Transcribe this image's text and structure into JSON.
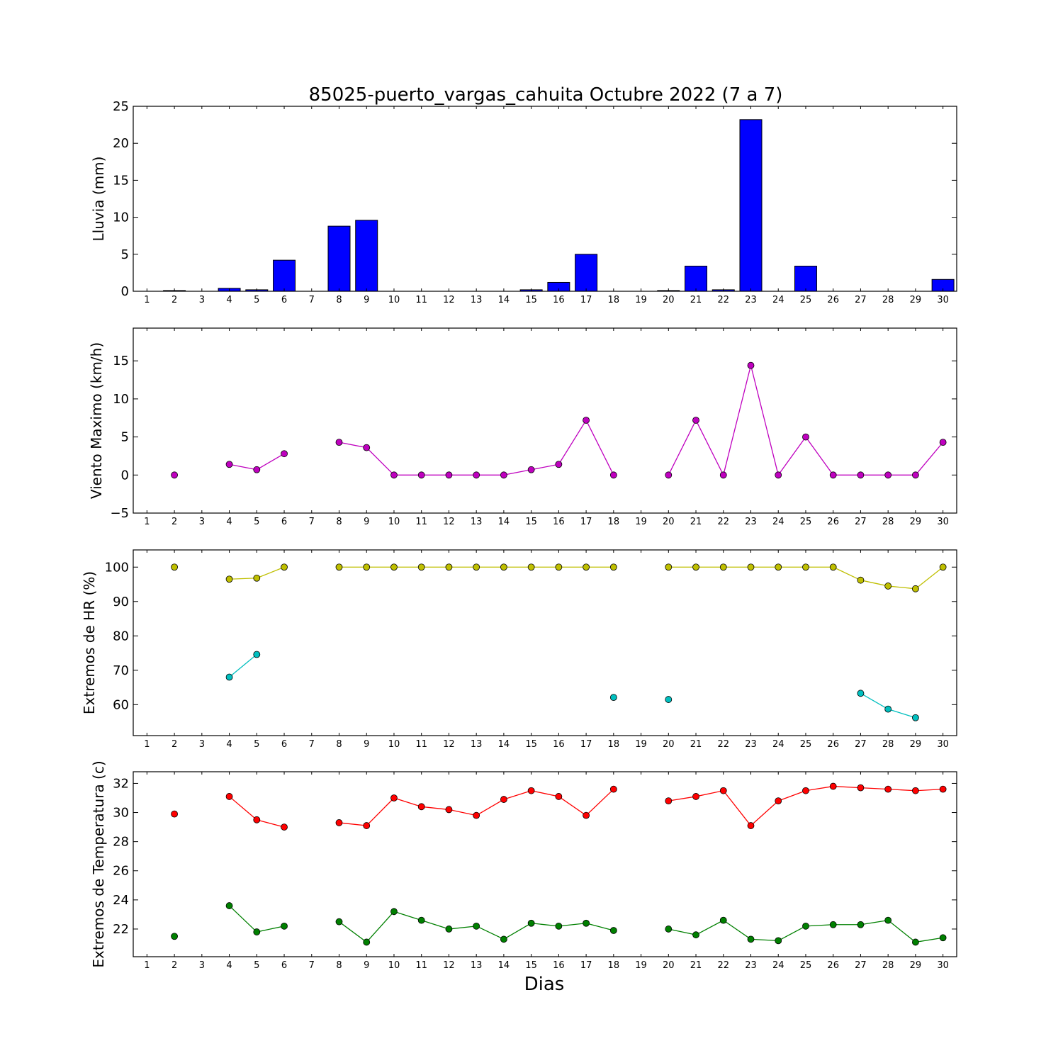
{
  "title": "85025-puerto_vargas_cahuita Octubre 2022  (7 a 7)",
  "xlabel": "Dias",
  "chart_data": [
    {
      "type": "bar",
      "ylabel": "Lluvia (mm)",
      "ylim": [
        0,
        25
      ],
      "yticks": [
        0,
        5,
        10,
        15,
        20,
        25
      ],
      "xlim": [
        0.5,
        30.5
      ],
      "x": [
        1,
        2,
        3,
        4,
        5,
        6,
        7,
        8,
        9,
        10,
        11,
        12,
        13,
        14,
        15,
        16,
        17,
        18,
        19,
        20,
        21,
        22,
        23,
        24,
        25,
        26,
        27,
        28,
        29,
        30
      ],
      "values": [
        0,
        0.1,
        0,
        0.4,
        0.2,
        4.2,
        0,
        8.8,
        9.6,
        0,
        0,
        0,
        0,
        0,
        0.2,
        1.2,
        5.0,
        0,
        0,
        0.1,
        3.4,
        0.2,
        23.2,
        0,
        3.4,
        0,
        0,
        0,
        0,
        1.6
      ],
      "colors": {
        "bar": "#0000ff"
      }
    },
    {
      "type": "line",
      "ylabel": "Viento Maximo (km/h)",
      "ylim": [
        -5,
        19.3
      ],
      "yticks": [
        -5,
        0,
        5,
        10,
        15
      ],
      "xlim": [
        0.5,
        30.5
      ],
      "x": [
        1,
        2,
        3,
        4,
        5,
        6,
        7,
        8,
        9,
        10,
        11,
        12,
        13,
        14,
        15,
        16,
        17,
        18,
        19,
        20,
        21,
        22,
        23,
        24,
        25,
        26,
        27,
        28,
        29,
        30
      ],
      "series": [
        {
          "color": "#bf00bf",
          "values": [
            null,
            0,
            null,
            1.4,
            0.7,
            2.8,
            null,
            4.3,
            3.6,
            0,
            0,
            0,
            0,
            0,
            0.7,
            1.4,
            7.2,
            0,
            null,
            0,
            7.2,
            0,
            14.4,
            0,
            5.0,
            0,
            0,
            0,
            0,
            4.3
          ]
        }
      ]
    },
    {
      "type": "line",
      "ylabel": "Extremos de HR (%)",
      "ylim": [
        51,
        105
      ],
      "yticks": [
        60,
        70,
        80,
        90,
        100
      ],
      "xlim": [
        0.5,
        30.5
      ],
      "x": [
        1,
        2,
        3,
        4,
        5,
        6,
        7,
        8,
        9,
        10,
        11,
        12,
        13,
        14,
        15,
        16,
        17,
        18,
        19,
        20,
        21,
        22,
        23,
        24,
        25,
        26,
        27,
        28,
        29,
        30
      ],
      "series": [
        {
          "color": "#bfbf00",
          "values": [
            null,
            100,
            null,
            96.5,
            96.8,
            100,
            null,
            100,
            100,
            100,
            100,
            100,
            100,
            100,
            100,
            100,
            100,
            100,
            null,
            100,
            100,
            100,
            100,
            100,
            100,
            100,
            96.2,
            94.5,
            93.7,
            100
          ]
        },
        {
          "color": "#00bfbf",
          "values": [
            null,
            null,
            null,
            68.0,
            74.6,
            null,
            null,
            null,
            null,
            null,
            null,
            null,
            null,
            null,
            null,
            null,
            null,
            62.1,
            null,
            61.5,
            null,
            null,
            null,
            null,
            null,
            null,
            63.3,
            58.7,
            56.2,
            null
          ]
        }
      ]
    },
    {
      "type": "line",
      "ylabel": "Extremos de Temperatura (c)",
      "ylim": [
        20.1,
        32.8
      ],
      "yticks": [
        22,
        24,
        26,
        28,
        30,
        32
      ],
      "xlim": [
        0.5,
        30.5
      ],
      "x": [
        1,
        2,
        3,
        4,
        5,
        6,
        7,
        8,
        9,
        10,
        11,
        12,
        13,
        14,
        15,
        16,
        17,
        18,
        19,
        20,
        21,
        22,
        23,
        24,
        25,
        26,
        27,
        28,
        29,
        30
      ],
      "series": [
        {
          "color": "#ff0000",
          "values": [
            null,
            29.9,
            null,
            31.1,
            29.5,
            29.0,
            null,
            29.3,
            29.1,
            31.0,
            30.4,
            30.2,
            29.8,
            30.9,
            31.5,
            31.1,
            29.8,
            31.6,
            null,
            30.8,
            31.1,
            31.5,
            29.1,
            30.8,
            31.5,
            31.8,
            31.7,
            31.6,
            31.5,
            31.6
          ]
        },
        {
          "color": "#008000",
          "values": [
            null,
            21.5,
            null,
            23.6,
            21.8,
            22.2,
            null,
            22.5,
            21.1,
            23.2,
            22.6,
            22.0,
            22.2,
            21.3,
            22.4,
            22.2,
            22.4,
            21.9,
            null,
            22.0,
            21.6,
            22.6,
            21.3,
            21.2,
            22.2,
            22.3,
            22.3,
            22.6,
            21.1,
            21.4
          ]
        }
      ]
    }
  ]
}
